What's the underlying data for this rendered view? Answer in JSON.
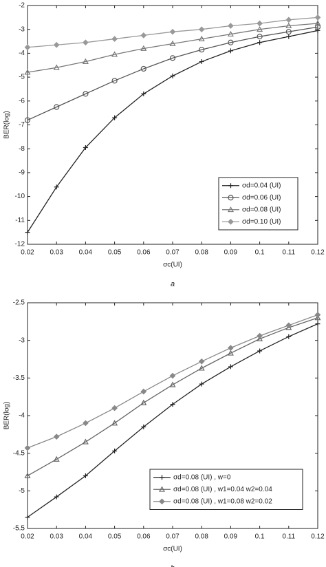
{
  "chart_data": [
    {
      "type": "line",
      "caption": "a",
      "ylabel": "BER(log)",
      "xlabel": "σc(UI)",
      "x": [
        0.02,
        0.03,
        0.04,
        0.05,
        0.06,
        0.07,
        0.08,
        0.09,
        0.1,
        0.11,
        0.12
      ],
      "xlim": [
        0.02,
        0.12
      ],
      "xticks": [
        0.02,
        0.03,
        0.04,
        0.05,
        0.06,
        0.07,
        0.08,
        0.09,
        0.1,
        0.11,
        0.12
      ],
      "ylim": [
        -12,
        -2
      ],
      "yticks": [
        -12,
        -11,
        -10,
        -9,
        -8,
        -7,
        -6,
        -5,
        -4,
        -3,
        -2
      ],
      "legend": "lower right",
      "series": [
        {
          "name": "σd=0.04 (UI)",
          "color": "#222222",
          "marker": "plus",
          "values": [
            -11.5,
            -9.6,
            -7.95,
            -6.7,
            -5.7,
            -4.95,
            -4.35,
            -3.9,
            -3.55,
            -3.3,
            -3.05
          ]
        },
        {
          "name": "σd=0.06 (UI)",
          "color": "#555555",
          "marker": "circle",
          "values": [
            -6.8,
            -6.25,
            -5.7,
            -5.15,
            -4.65,
            -4.2,
            -3.85,
            -3.55,
            -3.3,
            -3.1,
            -2.9
          ]
        },
        {
          "name": "σd=0.08 (UI)",
          "color": "#777777",
          "marker": "triangle",
          "values": [
            -4.8,
            -4.6,
            -4.35,
            -4.05,
            -3.8,
            -3.6,
            -3.4,
            -3.2,
            -3.0,
            -2.85,
            -2.75
          ]
        },
        {
          "name": "σd=0.10 (UI)",
          "color": "#999999",
          "marker": "star",
          "values": [
            -3.75,
            -3.65,
            -3.55,
            -3.4,
            -3.25,
            -3.1,
            -3.0,
            -2.85,
            -2.75,
            -2.6,
            -2.5
          ]
        }
      ]
    },
    {
      "type": "line",
      "caption": "b",
      "ylabel": "BER(log)",
      "xlabel": "σc(UI)",
      "x": [
        0.02,
        0.03,
        0.04,
        0.05,
        0.06,
        0.07,
        0.08,
        0.09,
        0.1,
        0.11,
        0.12
      ],
      "xlim": [
        0.02,
        0.12
      ],
      "xticks": [
        0.02,
        0.03,
        0.04,
        0.05,
        0.06,
        0.07,
        0.08,
        0.09,
        0.1,
        0.11,
        0.12
      ],
      "ylim": [
        -5.5,
        -2.5
      ],
      "yticks": [
        -5.5,
        -5,
        -4.5,
        -4,
        -3.5,
        -3,
        -2.5
      ],
      "legend": "lower right",
      "series": [
        {
          "name": "σd=0.08 (UI) , w=0",
          "color": "#222222",
          "marker": "plus",
          "values": [
            -5.35,
            -5.08,
            -4.8,
            -4.47,
            -4.15,
            -3.85,
            -3.58,
            -3.35,
            -3.14,
            -2.95,
            -2.78
          ]
        },
        {
          "name": "σd=0.08 (UI) , w1=0.04 w2=0.04",
          "color": "#666666",
          "marker": "triangle",
          "values": [
            -4.8,
            -4.58,
            -4.35,
            -4.1,
            -3.83,
            -3.59,
            -3.37,
            -3.17,
            -2.98,
            -2.83,
            -2.7
          ]
        },
        {
          "name": "σd=0.08 (UI) , w1=0.08 w2=0.02",
          "color": "#888888",
          "marker": "star",
          "values": [
            -4.43,
            -4.28,
            -4.1,
            -3.9,
            -3.68,
            -3.47,
            -3.28,
            -3.1,
            -2.94,
            -2.8,
            -2.66
          ]
        }
      ]
    }
  ]
}
